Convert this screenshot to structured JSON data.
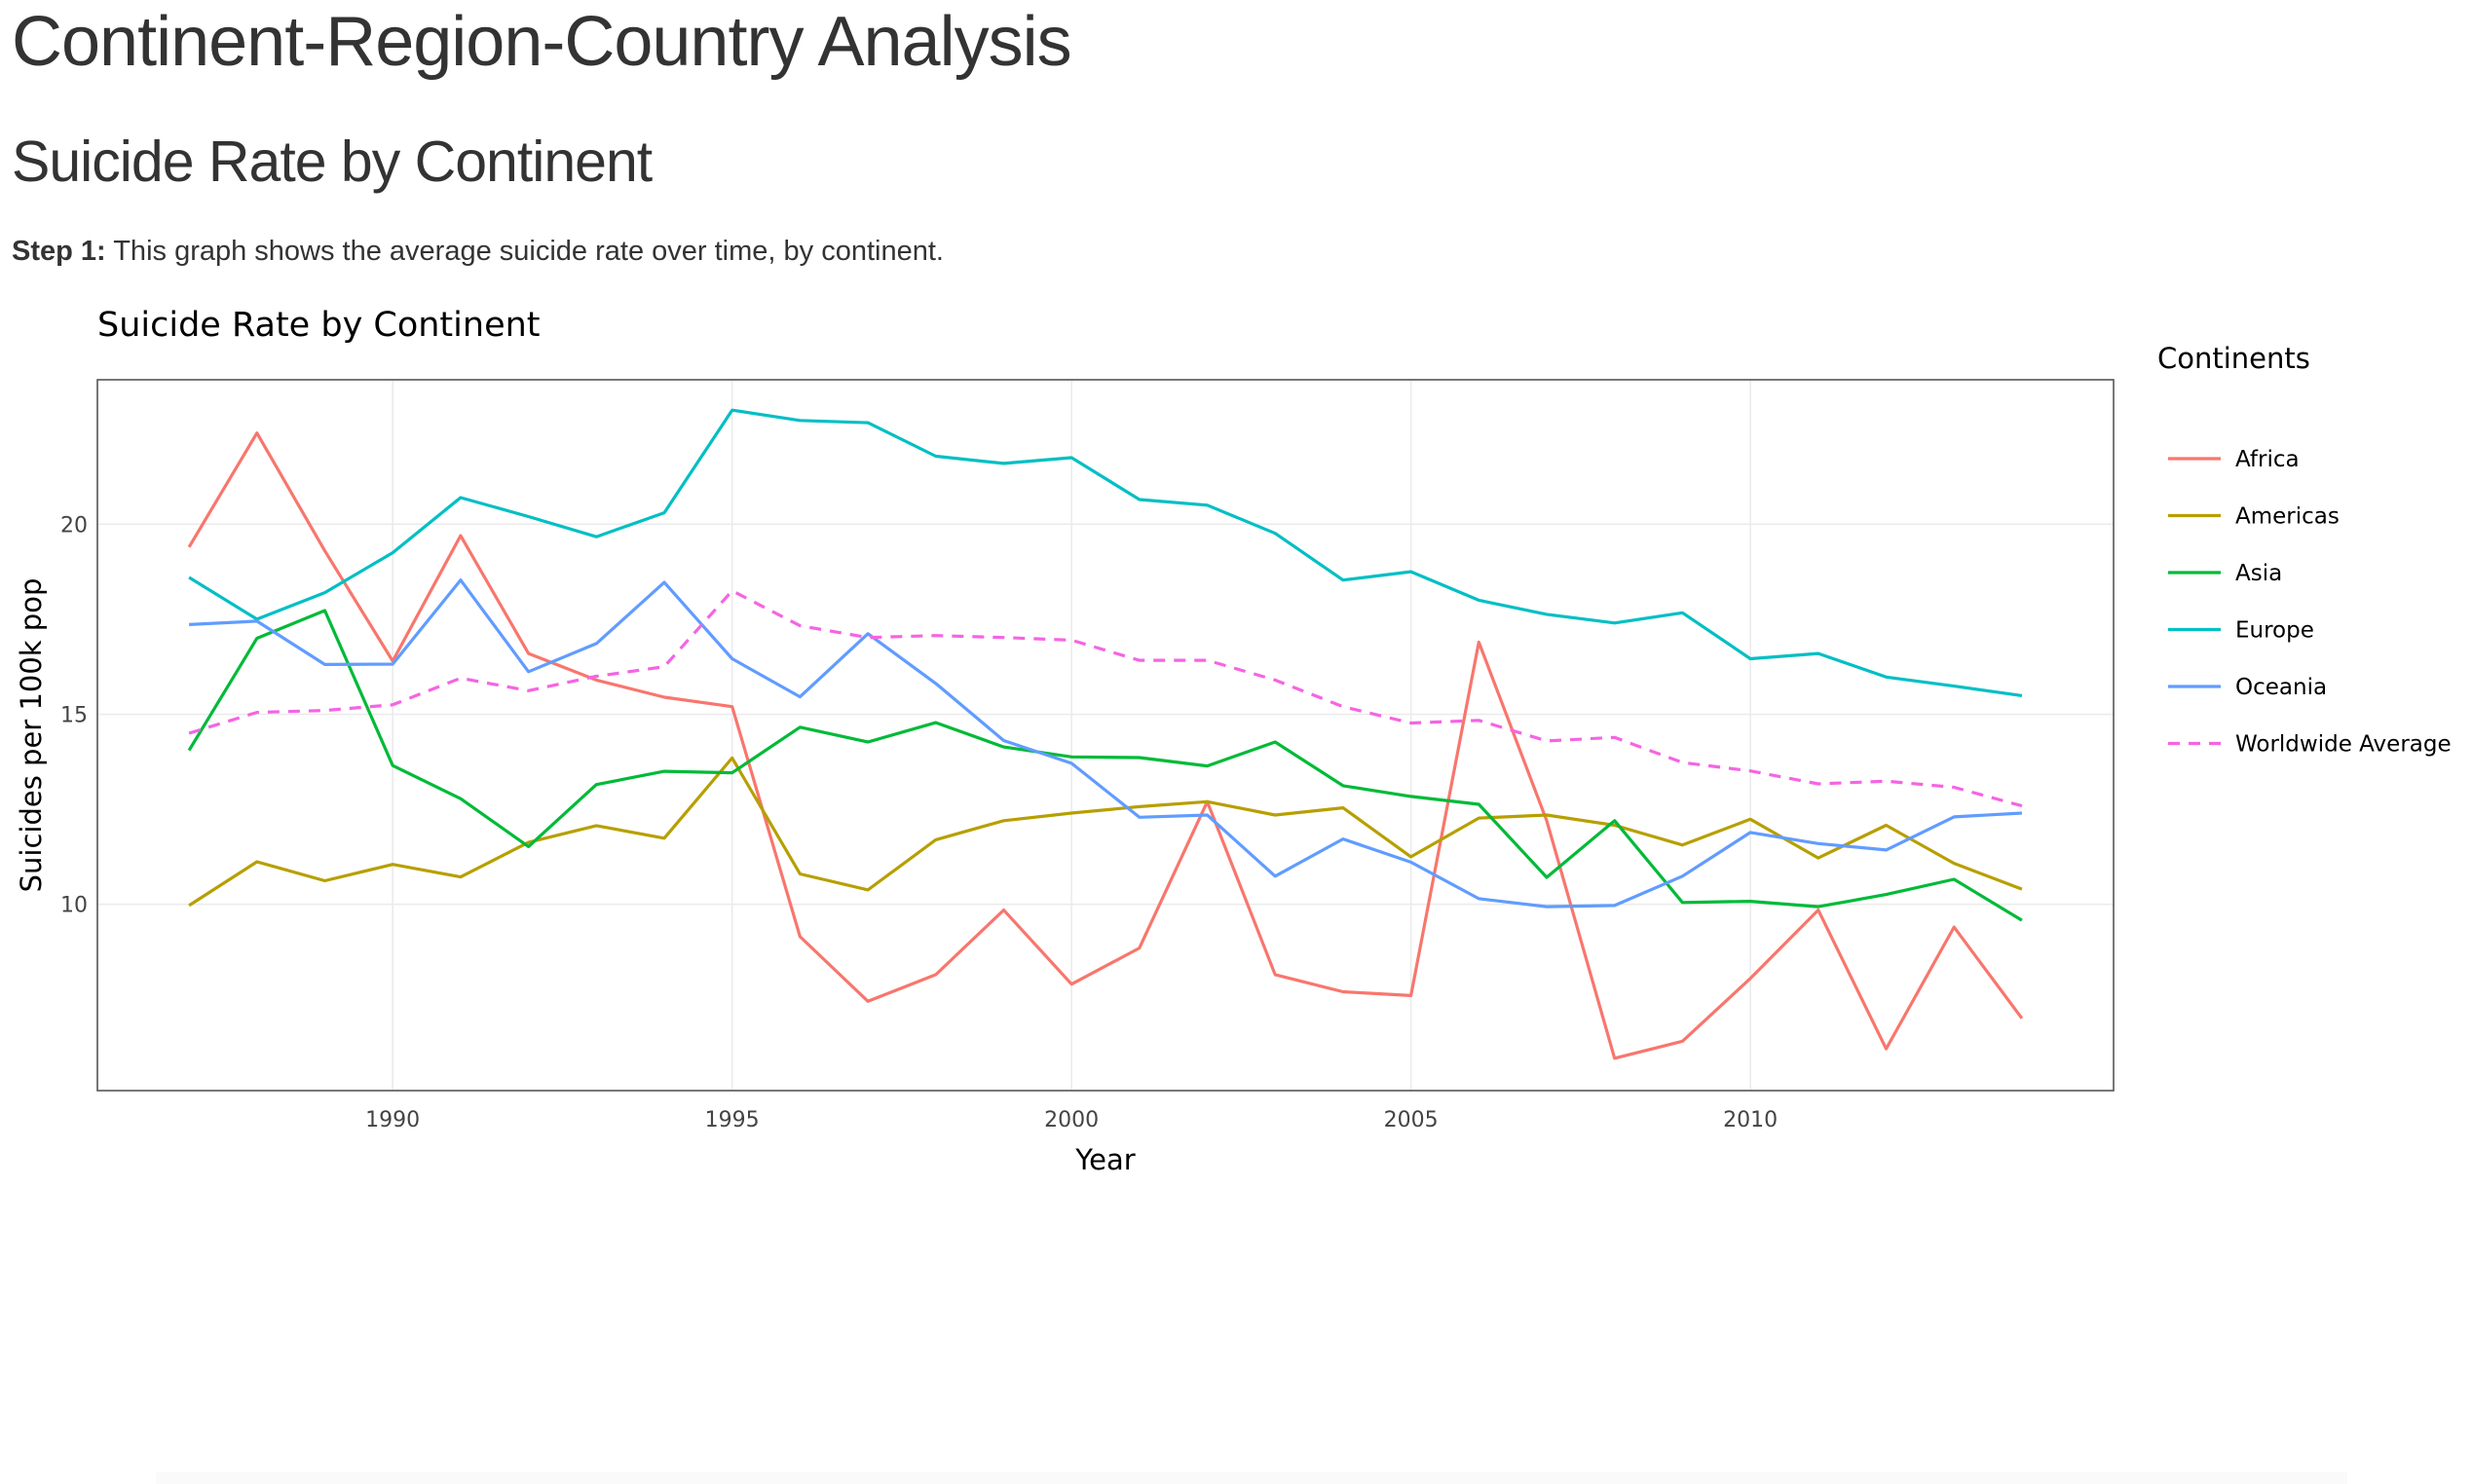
{
  "page": {
    "title": "Continent-Region-Country Analysis",
    "section_title": "Suicide Rate by Continent",
    "step_label": "Step 1:",
    "step_text": " This graph shows the average suicide rate over time, by continent."
  },
  "chart_data": {
    "type": "line",
    "title": "Suicide Rate by Continent",
    "xlabel": "Year",
    "ylabel": "Suicides per 100k pop",
    "xlim": [
      1985.65,
      2015.35
    ],
    "ylim": [
      5.1,
      23.8
    ],
    "x_ticks": [
      1990,
      1995,
      2000,
      2005,
      2010
    ],
    "y_ticks": [
      10,
      15,
      20
    ],
    "grid": true,
    "legend_title": "Continents",
    "legend_position": "right",
    "x": [
      1987,
      1988,
      1989,
      1990,
      1991,
      1992,
      1993,
      1994,
      1995,
      1996,
      1997,
      1998,
      1999,
      2000,
      2001,
      2002,
      2003,
      2004,
      2005,
      2006,
      2007,
      2008,
      2009,
      2010,
      2011,
      2012,
      2013,
      2014
    ],
    "series": [
      {
        "name": "Africa",
        "color": "#F8766D",
        "dash": false,
        "values": [
          19.4,
          22.4,
          19.3,
          16.4,
          19.7,
          16.6,
          15.9,
          15.45,
          15.2,
          9.15,
          7.45,
          8.15,
          9.85,
          7.9,
          8.85,
          12.7,
          8.15,
          7.7,
          7.6,
          16.9,
          12.2,
          5.95,
          6.4,
          8.05,
          9.85,
          6.2,
          9.4,
          7.0
        ]
      },
      {
        "name": "Americas",
        "color": "#B79F00",
        "dash": false,
        "values": [
          9.97,
          11.12,
          10.62,
          11.05,
          10.72,
          11.63,
          12.07,
          11.74,
          13.85,
          10.8,
          10.38,
          11.7,
          12.2,
          12.4,
          12.57,
          12.7,
          12.35,
          12.54,
          11.25,
          12.27,
          12.35,
          12.08,
          11.56,
          12.24,
          11.22,
          12.08,
          11.08,
          10.4
        ]
      },
      {
        "name": "Asia",
        "color": "#00BA38",
        "dash": false,
        "values": [
          14.05,
          17.0,
          17.73,
          13.65,
          12.78,
          11.52,
          13.15,
          13.5,
          13.46,
          14.66,
          14.27,
          14.78,
          14.14,
          13.88,
          13.86,
          13.64,
          14.27,
          13.12,
          12.84,
          12.63,
          10.71,
          12.2,
          10.05,
          10.08,
          9.94,
          10.26,
          10.66,
          9.58
        ]
      },
      {
        "name": "Europe",
        "color": "#00BFC4",
        "dash": false,
        "values": [
          18.6,
          17.5,
          18.2,
          19.25,
          20.7,
          20.2,
          19.67,
          20.3,
          23.0,
          22.73,
          22.67,
          21.79,
          21.6,
          21.75,
          20.65,
          20.5,
          19.76,
          18.53,
          18.75,
          18.0,
          17.63,
          17.4,
          17.67,
          16.46,
          16.6,
          15.98,
          15.74,
          15.49
        ]
      },
      {
        "name": "Oceania",
        "color": "#619CFF",
        "dash": false,
        "values": [
          17.36,
          17.45,
          16.31,
          16.32,
          18.53,
          16.12,
          16.86,
          18.47,
          16.46,
          15.46,
          17.12,
          15.81,
          14.31,
          13.71,
          12.29,
          12.35,
          10.74,
          11.72,
          11.11,
          10.15,
          9.94,
          9.97,
          10.74,
          11.89,
          11.6,
          11.43,
          12.3,
          12.4
        ]
      },
      {
        "name": "Worldwide Average",
        "color": "#F564E3",
        "dash": true,
        "values": [
          14.5,
          15.05,
          15.1,
          15.25,
          15.95,
          15.62,
          16.0,
          16.25,
          18.25,
          17.33,
          17.02,
          17.07,
          17.02,
          16.95,
          16.42,
          16.42,
          15.9,
          15.2,
          14.77,
          14.84,
          14.3,
          14.39,
          13.73,
          13.51,
          13.17,
          13.24,
          13.08,
          12.59
        ]
      }
    ]
  }
}
